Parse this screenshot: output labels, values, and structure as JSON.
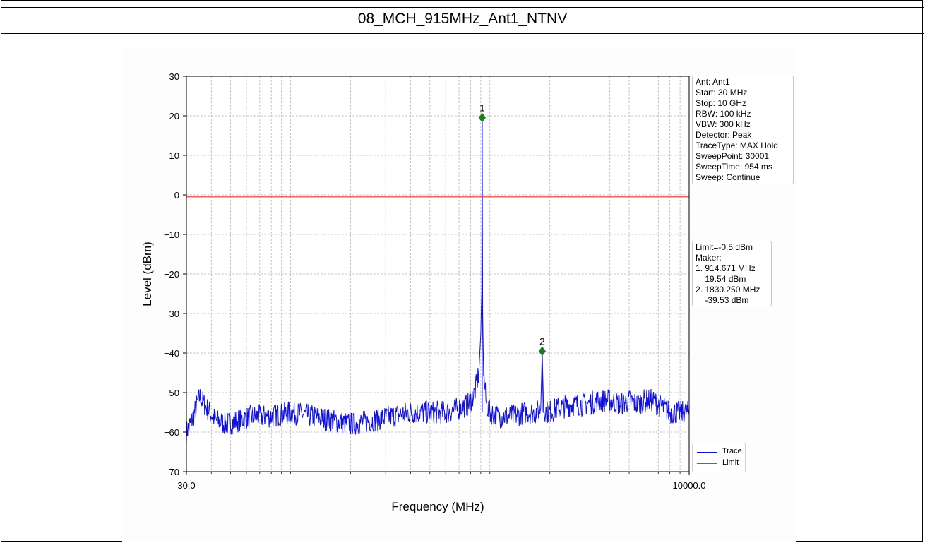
{
  "page": {
    "title": "08_MCH_915MHz_Ant1_NTNV"
  },
  "chart_data": {
    "type": "line",
    "title": "",
    "xlabel": "Frequency (MHz)",
    "ylabel": "Level (dBm)",
    "x_scale": "log",
    "xlim": [
      30.0,
      10000.0
    ],
    "ylim": [
      -70,
      30
    ],
    "x_tick_labels": [
      "30.0",
      "10000.0"
    ],
    "y_ticks": [
      30,
      20,
      10,
      0,
      -10,
      -20,
      -30,
      -40,
      -50,
      -60,
      -70
    ],
    "y_tick_labels": [
      "30",
      "20",
      "10",
      "0",
      "−10",
      "−20",
      "−30",
      "−40",
      "−50",
      "−60",
      "−70"
    ],
    "grid": true,
    "limit_line": {
      "name": "Limit",
      "value": -0.5,
      "color": "#e8322d"
    },
    "series": [
      {
        "name": "Trace",
        "color": "#1010e0",
        "x": [
          30,
          32,
          35,
          38,
          42,
          48,
          55,
          65,
          80,
          100,
          130,
          160,
          200,
          260,
          320,
          400,
          500,
          600,
          700,
          780,
          840,
          880,
          900,
          910,
          914.671,
          920,
          930,
          960,
          1000,
          1100,
          1300,
          1500,
          1700,
          1800,
          1830.25,
          1860,
          1950,
          2200,
          2600,
          3000,
          3500,
          4000,
          4500,
          5000,
          5500,
          6000,
          6500,
          7000,
          7500,
          8000,
          8500,
          9000,
          9500,
          10000
        ],
        "y": [
          -60,
          -57,
          -51,
          -54,
          -57,
          -58,
          -57,
          -56,
          -56,
          -55,
          -56,
          -57,
          -58,
          -57,
          -56,
          -55,
          -55,
          -55,
          -54,
          -53,
          -50,
          -45,
          -35,
          -25,
          19.54,
          -30,
          -45,
          -53,
          -55,
          -56,
          -56,
          -55,
          -55,
          -54,
          -39.53,
          -54,
          -55,
          -54,
          -53,
          -53,
          -52,
          -52,
          -53,
          -52,
          -53,
          -52,
          -52,
          -53,
          -54,
          -55,
          -55,
          -55,
          -55,
          -55
        ]
      }
    ],
    "markers": [
      {
        "label": "1",
        "x": 914.671,
        "y": 19.54,
        "color": "#1a7f1a"
      },
      {
        "label": "2",
        "x": 1830.25,
        "y": -39.53,
        "color": "#1a7f1a"
      }
    ],
    "info_lines": [
      "Ant: Ant1",
      "Start: 30 MHz",
      "Stop: 10 GHz",
      "RBW: 100 kHz",
      "VBW: 300 kHz",
      "Detector: Peak",
      "TraceType: MAX Hold",
      "SweepPoint: 30001",
      "SweepTime: 954 ms",
      "Sweep: Continue"
    ],
    "marker_info_lines": [
      "Limit=-0.5 dBm",
      "Maker:",
      "1. 914.671 MHz",
      "    19.54 dBm",
      "2. 1830.250 MHz",
      "    -39.53 dBm"
    ],
    "legend": {
      "placement": "lower-right",
      "entries": [
        "Trace",
        "Limit"
      ]
    }
  }
}
